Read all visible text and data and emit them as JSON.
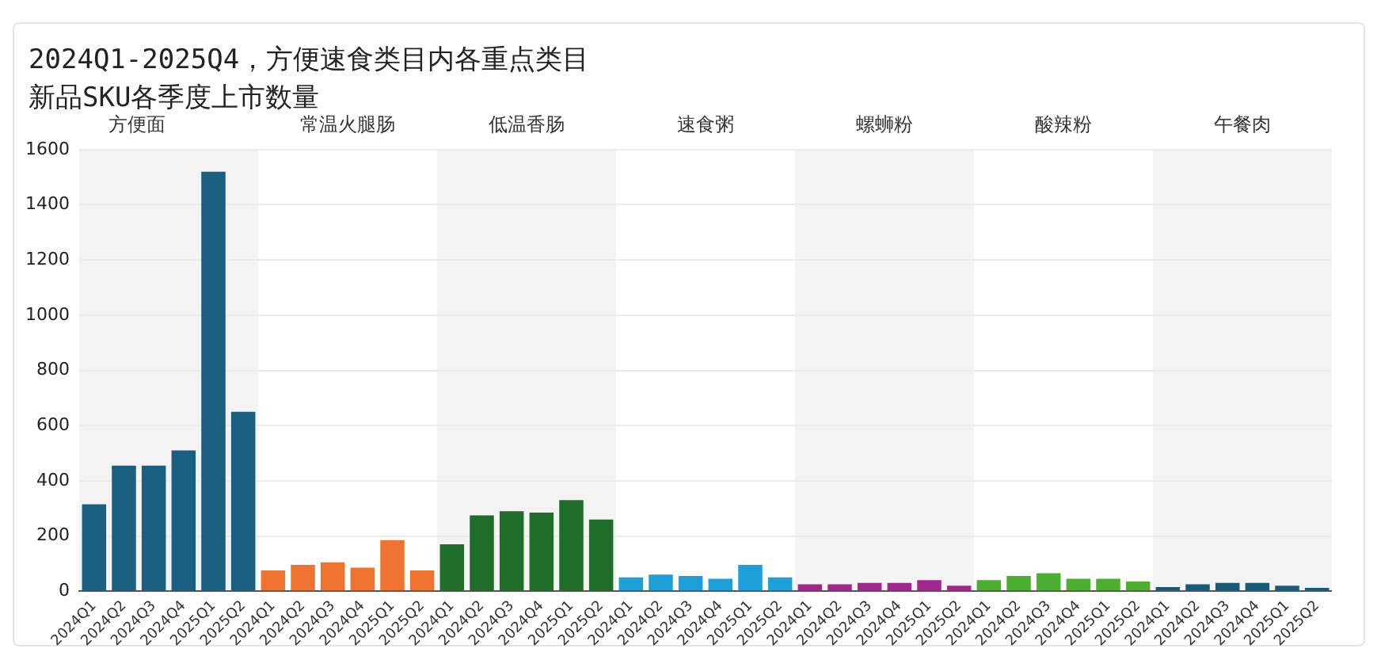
{
  "chart_data": [
    {
      "type": "other",
      "title": "2024Q1-2025Q4，方便速食类目内各重点类目",
      "subtitle": "新品SKU各季度上市数量"
    },
    {
      "type": "bar",
      "title": "方便面",
      "categories": [
        "2024Q1",
        "2024Q2",
        "2024Q3",
        "2024Q4",
        "2025Q1",
        "2025Q2"
      ],
      "values": [
        315,
        455,
        455,
        510,
        1520,
        650
      ],
      "color": "#1a5e80",
      "ylim": [
        0,
        1600
      ],
      "yticks": [
        0,
        200,
        400,
        600,
        800,
        1000,
        1200,
        1400,
        1600
      ],
      "grid": "y"
    },
    {
      "type": "bar",
      "title": "常温火腿肠",
      "categories": [
        "2024Q1",
        "2024Q2",
        "2024Q3",
        "2024Q4",
        "2025Q1",
        "2025Q2"
      ],
      "values": [
        75,
        95,
        105,
        85,
        185,
        75
      ],
      "color": "#ee7330",
      "ylim": [
        0,
        1600
      ],
      "yticks": [
        0,
        200,
        400,
        600,
        800,
        1000,
        1200,
        1400,
        1600
      ],
      "grid": "y",
      "tick_labels": "x"
    },
    {
      "type": "bar",
      "title": "低温香肠",
      "categories": [
        "2024Q1",
        "2024Q2",
        "2024Q3",
        "2024Q4",
        "2025Q1",
        "2025Q2"
      ],
      "values": [
        170,
        275,
        290,
        285,
        330,
        260
      ],
      "color": "#1e6e2a",
      "ylim": [
        0,
        1600
      ],
      "yticks": [
        0,
        200,
        400,
        600,
        800,
        1000,
        1200,
        1400,
        1600
      ],
      "grid": "y",
      "tick_labels": "x"
    },
    {
      "type": "bar",
      "title": "速食粥",
      "categories": [
        "2024Q1",
        "2024Q2",
        "2024Q3",
        "2024Q4",
        "2025Q1",
        "2025Q2"
      ],
      "values": [
        50,
        60,
        55,
        45,
        95,
        50
      ],
      "color": "#1e9fd8",
      "ylim": [
        0,
        1600
      ],
      "yticks": [
        0,
        200,
        400,
        600,
        800,
        1000,
        1200,
        1400,
        1600
      ],
      "grid": "y",
      "tick_labels": "x"
    },
    {
      "type": "bar",
      "title": "螺蛳粉",
      "categories": [
        "2024Q1",
        "2024Q2",
        "2024Q3",
        "2024Q4",
        "2025Q1",
        "2025Q2"
      ],
      "values": [
        25,
        25,
        30,
        30,
        40,
        20
      ],
      "color": "#a0288c",
      "ylim": [
        0,
        1600
      ],
      "yticks": [
        0,
        200,
        400,
        600,
        800,
        1000,
        1200,
        1400,
        1600
      ],
      "grid": "y",
      "tick_labels": "x"
    },
    {
      "type": "bar",
      "title": "酸辣粉",
      "categories": [
        "2024Q1",
        "2024Q2",
        "2024Q3",
        "2024Q4",
        "2025Q1",
        "2025Q2"
      ],
      "values": [
        40,
        55,
        65,
        45,
        45,
        35
      ],
      "color": "#4caf32",
      "ylim": [
        0,
        1600
      ],
      "yticks": [
        0,
        200,
        400,
        600,
        800,
        1000,
        1200,
        1400,
        1600
      ],
      "grid": "y",
      "tick_labels": "x"
    },
    {
      "type": "bar",
      "title": "午餐肉",
      "categories": [
        "2024Q1",
        "2024Q2",
        "2024Q3",
        "2024Q4",
        "2025Q1",
        "2025Q2"
      ],
      "values": [
        15,
        25,
        30,
        30,
        20,
        12
      ],
      "color": "#185a7a",
      "ylim": [
        0,
        1600
      ],
      "yticks": [
        0,
        200,
        400,
        600,
        800,
        1000,
        1200,
        1400,
        1600
      ],
      "grid": "y",
      "tick_labels": "x"
    }
  ]
}
